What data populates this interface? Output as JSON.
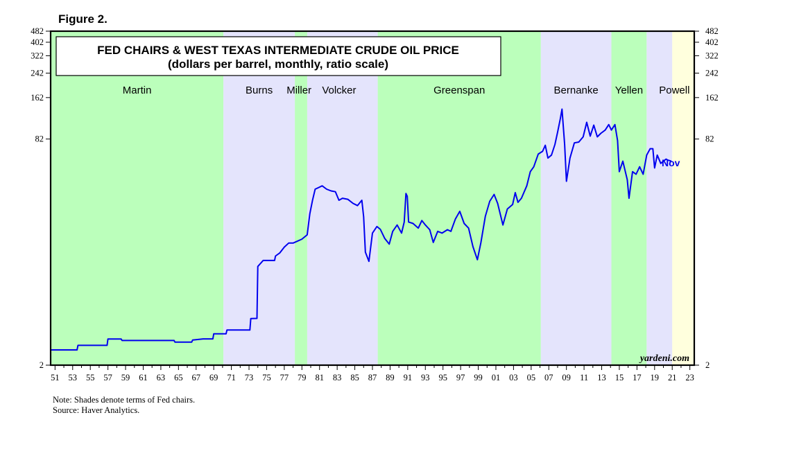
{
  "figure_label": "Figure 2.",
  "notes": {
    "note": "Note: Shades denote terms of Fed chairs.",
    "source": "Source: Haver Analytics."
  },
  "chart_data": {
    "type": "line",
    "title": "FED CHAIRS & WEST TEXAS INTERMEDIATE CRUDE OIL PRICE",
    "subtitle": "(dollars per barrel, monthly, ratio scale)",
    "scale": "log",
    "ylim": [
      2,
      482
    ],
    "xlim": [
      1950.5,
      2023.5
    ],
    "y_ticks": [
      2,
      82,
      162,
      242,
      322,
      402,
      482
    ],
    "y_tick_labels": [
      "2",
      "82",
      "162",
      "242",
      "322",
      "402",
      "482"
    ],
    "x_tick_labels": [
      "51",
      "53",
      "55",
      "57",
      "59",
      "61",
      "63",
      "65",
      "67",
      "69",
      "71",
      "73",
      "75",
      "77",
      "79",
      "81",
      "83",
      "85",
      "87",
      "89",
      "91",
      "93",
      "95",
      "97",
      "99",
      "01",
      "03",
      "05",
      "07",
      "09",
      "11",
      "13",
      "15",
      "17",
      "19",
      "21",
      "23"
    ],
    "watermark": "yardeni.com",
    "end_label": "Nov",
    "colors": {
      "line": "#0000ee",
      "green_band": "#bbffbb",
      "lavender_band": "#e4e4fc",
      "yellow_band": "#ffffdd"
    },
    "chairs": [
      {
        "name": "Martin",
        "start": 1950.5,
        "end": 1970.1,
        "shade": "green"
      },
      {
        "name": "Burns",
        "start": 1970.1,
        "end": 1978.2,
        "shade": "lavender"
      },
      {
        "name": "Miller",
        "start": 1978.2,
        "end": 1979.6,
        "shade": "green"
      },
      {
        "name": "Volcker",
        "start": 1979.6,
        "end": 1987.6,
        "shade": "lavender"
      },
      {
        "name": "Greenspan",
        "start": 1987.6,
        "end": 2006.1,
        "shade": "green"
      },
      {
        "name": "Bernanke",
        "start": 2006.1,
        "end": 2014.1,
        "shade": "lavender"
      },
      {
        "name": "Yellen",
        "start": 2014.1,
        "end": 2018.1,
        "shade": "green"
      },
      {
        "name": "Powell",
        "start": 2018.1,
        "end": 2021.0,
        "shade": "lavender"
      },
      {
        "name": "",
        "start": 2021.0,
        "end": 2023.5,
        "shade": "yellow"
      }
    ],
    "series": [
      {
        "name": "WTI crude oil price",
        "points": [
          [
            1950.5,
            2.57
          ],
          [
            1952.5,
            2.57
          ],
          [
            1953.5,
            2.57
          ],
          [
            1953.6,
            2.77
          ],
          [
            1956.9,
            2.77
          ],
          [
            1957.0,
            3.07
          ],
          [
            1958.5,
            3.07
          ],
          [
            1958.6,
            3.0
          ],
          [
            1964.5,
            3.0
          ],
          [
            1964.6,
            2.92
          ],
          [
            1966.5,
            2.92
          ],
          [
            1966.6,
            3.02
          ],
          [
            1967.8,
            3.08
          ],
          [
            1968.9,
            3.08
          ],
          [
            1969.0,
            3.35
          ],
          [
            1970.4,
            3.35
          ],
          [
            1970.5,
            3.56
          ],
          [
            1973.1,
            3.56
          ],
          [
            1973.2,
            4.3
          ],
          [
            1973.9,
            4.31
          ],
          [
            1974.0,
            10.11
          ],
          [
            1974.6,
            11.16
          ],
          [
            1975.9,
            11.16
          ],
          [
            1976.0,
            12.0
          ],
          [
            1976.5,
            12.65
          ],
          [
            1977.0,
            13.9
          ],
          [
            1977.5,
            14.85
          ],
          [
            1978.0,
            14.85
          ],
          [
            1979.0,
            15.85
          ],
          [
            1979.6,
            17.0
          ],
          [
            1979.9,
            24.0
          ],
          [
            1980.2,
            30.0
          ],
          [
            1980.5,
            36.0
          ],
          [
            1980.9,
            37.0
          ],
          [
            1981.3,
            38.0
          ],
          [
            1981.8,
            36.0
          ],
          [
            1982.3,
            35.0
          ],
          [
            1982.8,
            34.5
          ],
          [
            1983.2,
            30.0
          ],
          [
            1983.6,
            31.0
          ],
          [
            1984.2,
            30.5
          ],
          [
            1984.8,
            28.5
          ],
          [
            1985.3,
            27.5
          ],
          [
            1985.8,
            30.0
          ],
          [
            1986.0,
            22.9
          ],
          [
            1986.2,
            12.8
          ],
          [
            1986.6,
            11.0
          ],
          [
            1987.0,
            17.5
          ],
          [
            1987.5,
            19.5
          ],
          [
            1987.9,
            18.6
          ],
          [
            1988.4,
            16.0
          ],
          [
            1988.9,
            14.6
          ],
          [
            1989.3,
            18.0
          ],
          [
            1989.8,
            20.0
          ],
          [
            1990.3,
            17.5
          ],
          [
            1990.6,
            21.0
          ],
          [
            1990.8,
            33.5
          ],
          [
            1990.95,
            32.0
          ],
          [
            1991.1,
            21.0
          ],
          [
            1991.6,
            20.5
          ],
          [
            1992.2,
            19.0
          ],
          [
            1992.6,
            21.5
          ],
          [
            1993.0,
            20.0
          ],
          [
            1993.5,
            18.5
          ],
          [
            1993.9,
            15.0
          ],
          [
            1994.4,
            18.0
          ],
          [
            1994.9,
            17.5
          ],
          [
            1995.5,
            18.5
          ],
          [
            1995.9,
            18.0
          ],
          [
            1996.4,
            22.0
          ],
          [
            1996.9,
            25.0
          ],
          [
            1997.4,
            20.5
          ],
          [
            1997.9,
            19.0
          ],
          [
            1998.4,
            14.0
          ],
          [
            1998.9,
            11.3
          ],
          [
            1999.3,
            15.0
          ],
          [
            1999.8,
            23.0
          ],
          [
            2000.3,
            29.5
          ],
          [
            2000.8,
            33.0
          ],
          [
            2001.2,
            28.5
          ],
          [
            2001.8,
            20.0
          ],
          [
            2002.3,
            26.0
          ],
          [
            2002.9,
            28.0
          ],
          [
            2003.2,
            34.0
          ],
          [
            2003.5,
            29.0
          ],
          [
            2003.9,
            31.0
          ],
          [
            2004.5,
            38.0
          ],
          [
            2004.9,
            48.0
          ],
          [
            2005.3,
            52.0
          ],
          [
            2005.8,
            64.0
          ],
          [
            2006.3,
            67.0
          ],
          [
            2006.6,
            74.0
          ],
          [
            2006.9,
            60.0
          ],
          [
            2007.3,
            63.0
          ],
          [
            2007.7,
            75.0
          ],
          [
            2008.0,
            92.0
          ],
          [
            2008.3,
            114.0
          ],
          [
            2008.5,
            134.0
          ],
          [
            2008.8,
            75.0
          ],
          [
            2009.0,
            41.0
          ],
          [
            2009.4,
            60.0
          ],
          [
            2009.9,
            77.0
          ],
          [
            2010.4,
            78.0
          ],
          [
            2010.9,
            85.0
          ],
          [
            2011.3,
            108.0
          ],
          [
            2011.7,
            86.0
          ],
          [
            2012.1,
            103.0
          ],
          [
            2012.5,
            85.0
          ],
          [
            2012.9,
            90.0
          ],
          [
            2013.4,
            95.0
          ],
          [
            2013.8,
            104.0
          ],
          [
            2014.1,
            95.0
          ],
          [
            2014.5,
            104.0
          ],
          [
            2014.8,
            80.0
          ],
          [
            2015.0,
            48.0
          ],
          [
            2015.4,
            57.0
          ],
          [
            2015.9,
            42.0
          ],
          [
            2016.1,
            31.0
          ],
          [
            2016.5,
            48.0
          ],
          [
            2016.9,
            46.0
          ],
          [
            2017.3,
            52.0
          ],
          [
            2017.7,
            46.0
          ],
          [
            2018.1,
            63.0
          ],
          [
            2018.5,
            70.0
          ],
          [
            2018.8,
            70.0
          ],
          [
            2019.0,
            51.0
          ],
          [
            2019.3,
            63.0
          ],
          [
            2019.7,
            55.0
          ],
          [
            2020.0,
            57.0
          ],
          [
            2020.3,
            59.0
          ],
          [
            2020.5,
            58.0
          ],
          [
            2020.9,
            57.0
          ]
        ]
      }
    ]
  }
}
